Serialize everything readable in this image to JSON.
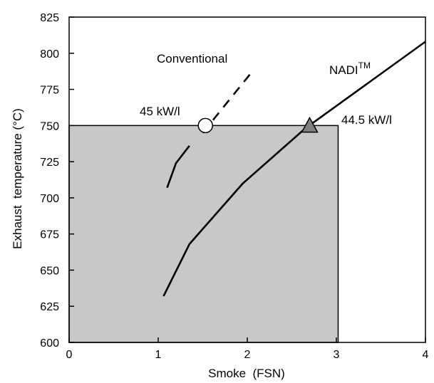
{
  "chart_data": {
    "type": "line",
    "xlabel": "Smoke  (FSN)",
    "ylabel": "Exhaust  temperature (°C)",
    "xlim": [
      0,
      4
    ],
    "ylim": [
      600,
      825
    ],
    "xticks": [
      0,
      1,
      2,
      3,
      4
    ],
    "yticks": [
      600,
      625,
      650,
      675,
      700,
      725,
      750,
      775,
      800,
      825
    ],
    "grid": false,
    "series": [
      {
        "name": "Conventional",
        "segments": [
          {
            "style": "solid",
            "points": [
              [
                1.1,
                707
              ],
              [
                1.2,
                724
              ],
              [
                1.35,
                736
              ]
            ]
          },
          {
            "style": "dashed",
            "points": [
              [
                1.5,
                745
              ],
              [
                2.05,
                787
              ]
            ]
          }
        ],
        "color": "#000000"
      },
      {
        "name": "NADI",
        "name_superscript": "TM",
        "points": [
          [
            1.06,
            632
          ],
          [
            1.35,
            668
          ],
          [
            1.95,
            710
          ],
          [
            2.65,
            748
          ],
          [
            4.0,
            808
          ]
        ],
        "color": "#000000"
      }
    ],
    "shaded_region": {
      "x": [
        0,
        3.02
      ],
      "y": [
        600,
        750
      ],
      "color": "#c8c8c8"
    },
    "markers": [
      {
        "shape": "circle",
        "x": 1.53,
        "y": 750,
        "fill": "#ffffff",
        "label": "45 kW/l"
      },
      {
        "shape": "triangle",
        "x": 2.7,
        "y": 750,
        "fill": "#808080",
        "label": "44.5 kW/l"
      }
    ]
  }
}
